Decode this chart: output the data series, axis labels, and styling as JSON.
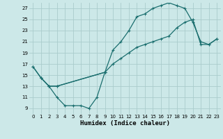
{
  "xlabel": "Humidex (Indice chaleur)",
  "bg_color": "#cce8e8",
  "grid_color": "#aacccc",
  "line_color": "#1a6e6e",
  "xlim": [
    -0.5,
    23.5
  ],
  "ylim": [
    8,
    28
  ],
  "xticks": [
    0,
    1,
    2,
    3,
    4,
    5,
    6,
    7,
    8,
    9,
    10,
    11,
    12,
    13,
    14,
    15,
    16,
    17,
    18,
    19,
    20,
    21,
    22,
    23
  ],
  "yticks": [
    9,
    11,
    13,
    15,
    17,
    19,
    21,
    23,
    25,
    27
  ],
  "line1_x": [
    0,
    1,
    2,
    3,
    4,
    5,
    6,
    7,
    8,
    9
  ],
  "line1_y": [
    16.5,
    14.5,
    13.0,
    11.0,
    9.5,
    9.5,
    9.5,
    9.0,
    11.0,
    15.5
  ],
  "line2_x": [
    0,
    1,
    2,
    3,
    9,
    10,
    11,
    12,
    13,
    14,
    15,
    16,
    17,
    18,
    19,
    20,
    21,
    22,
    23
  ],
  "line2_y": [
    16.5,
    14.5,
    13.0,
    13.0,
    15.5,
    19.5,
    21.0,
    23.0,
    25.5,
    26.0,
    27.0,
    27.5,
    28.0,
    27.5,
    27.0,
    24.5,
    21.0,
    20.5,
    21.5
  ],
  "line3_x": [
    1,
    2,
    3,
    9,
    10,
    11,
    12,
    13,
    14,
    15,
    16,
    17,
    18,
    19,
    20,
    21,
    22,
    23
  ],
  "line3_y": [
    14.5,
    13.0,
    13.0,
    15.5,
    17.0,
    18.0,
    19.0,
    20.0,
    20.5,
    21.0,
    21.5,
    22.0,
    23.5,
    24.5,
    25.0,
    20.5,
    20.5,
    21.5
  ]
}
